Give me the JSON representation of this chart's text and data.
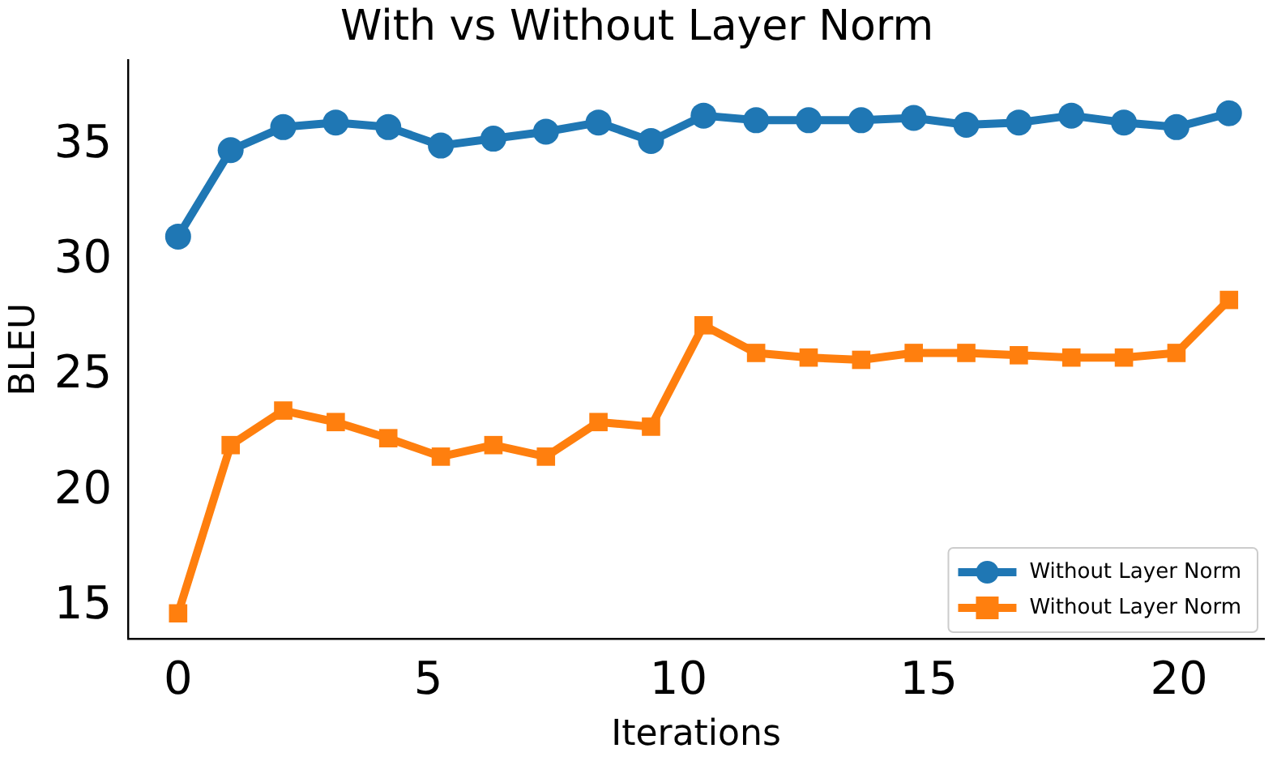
{
  "chart_data": {
    "type": "line",
    "title": "With vs Without Layer Norm",
    "xlabel": "Iterations",
    "ylabel": "BLEU",
    "x": [
      0,
      1.05,
      2.1,
      3.15,
      4.2,
      5.25,
      6.3,
      7.35,
      8.4,
      9.45,
      10.5,
      11.55,
      12.6,
      13.65,
      14.7,
      15.75,
      16.8,
      17.85,
      18.9,
      19.95,
      21
    ],
    "series": [
      {
        "name": "Without Layer Norm",
        "color": "#1f77b4",
        "marker": "circle",
        "values": [
          31.05,
          34.8,
          35.8,
          36.0,
          35.8,
          35.0,
          35.3,
          35.6,
          36.0,
          35.2,
          36.3,
          36.1,
          36.1,
          36.1,
          36.2,
          35.9,
          36.0,
          36.3,
          36.0,
          35.8,
          36.4
        ]
      },
      {
        "name": "Without Layer Norm",
        "color": "#ff7f0e",
        "marker": "square",
        "values": [
          14.7,
          22.0,
          23.5,
          23.0,
          22.3,
          21.5,
          22.0,
          21.5,
          23.0,
          22.8,
          27.2,
          26.0,
          25.8,
          25.7,
          26.0,
          26.0,
          25.9,
          25.8,
          25.8,
          26.0,
          28.3
        ]
      }
    ],
    "xlim": [
      -1.0,
      21.7
    ],
    "xticks": [
      0,
      5,
      10,
      15,
      20
    ],
    "ylim": [
      13.6,
      38.7
    ],
    "yticks": [
      15,
      20,
      25,
      30,
      35
    ],
    "grid": false,
    "legend": "bottom right",
    "line_style": "solid"
  }
}
